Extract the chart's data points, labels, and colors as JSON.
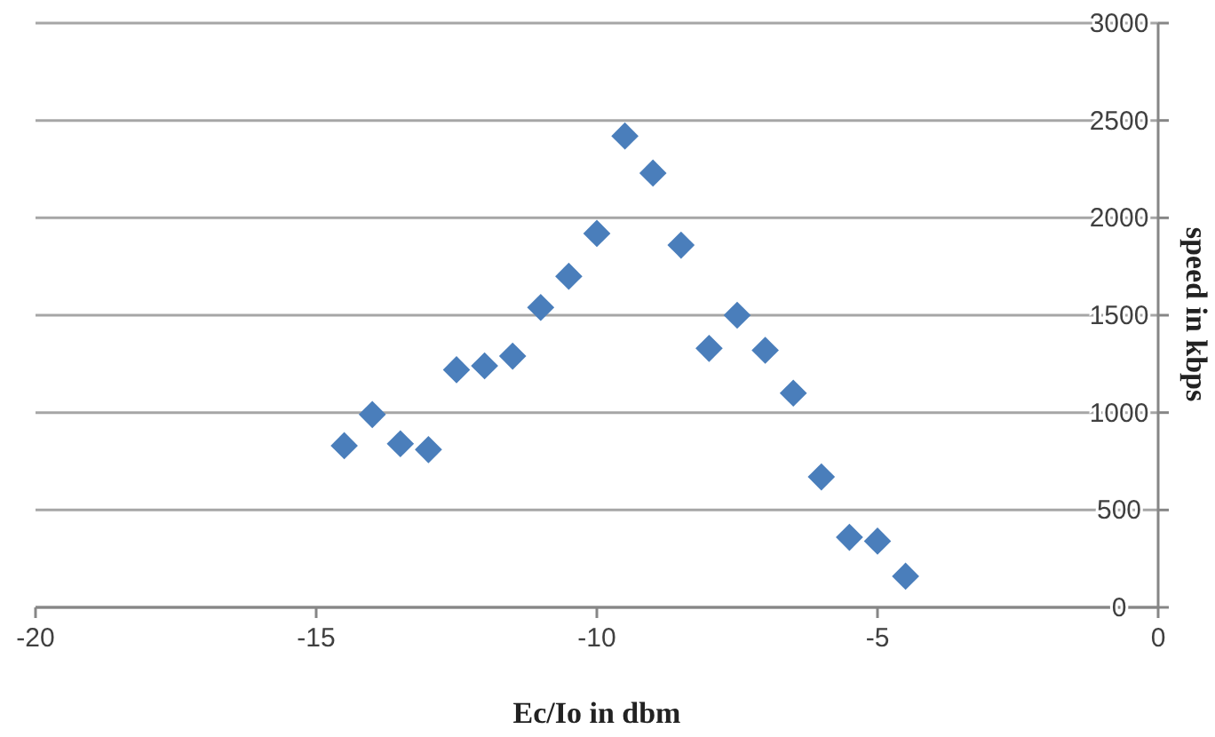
{
  "chart_data": {
    "type": "scatter",
    "xlabel": "Ec/Io in dbm",
    "ylabel": "speed in kbps",
    "x": [
      -14.5,
      -14,
      -13.5,
      -13,
      -12.5,
      -12,
      -11.5,
      -11,
      -10.5,
      -10,
      -9.5,
      -9,
      -8.5,
      -8,
      -7.5,
      -7,
      -6.5,
      -6,
      -5.5,
      -5,
      -4.5
    ],
    "series": [
      {
        "color": "#4a7ebb",
        "values": [
          830,
          990,
          840,
          810,
          1220,
          1240,
          1290,
          1540,
          1700,
          1920,
          2420,
          2230,
          1860,
          1330,
          1500,
          1320,
          1100,
          670,
          360,
          340,
          160
        ]
      }
    ],
    "xlim": [
      -20,
      0
    ],
    "xticks": [
      -20,
      -15,
      -10,
      -5,
      0
    ],
    "ylim": [
      0,
      3000
    ],
    "yticks": [
      0,
      500,
      1000,
      1500,
      2000,
      2500,
      3000
    ],
    "grid": "y",
    "marker": "diamond"
  }
}
